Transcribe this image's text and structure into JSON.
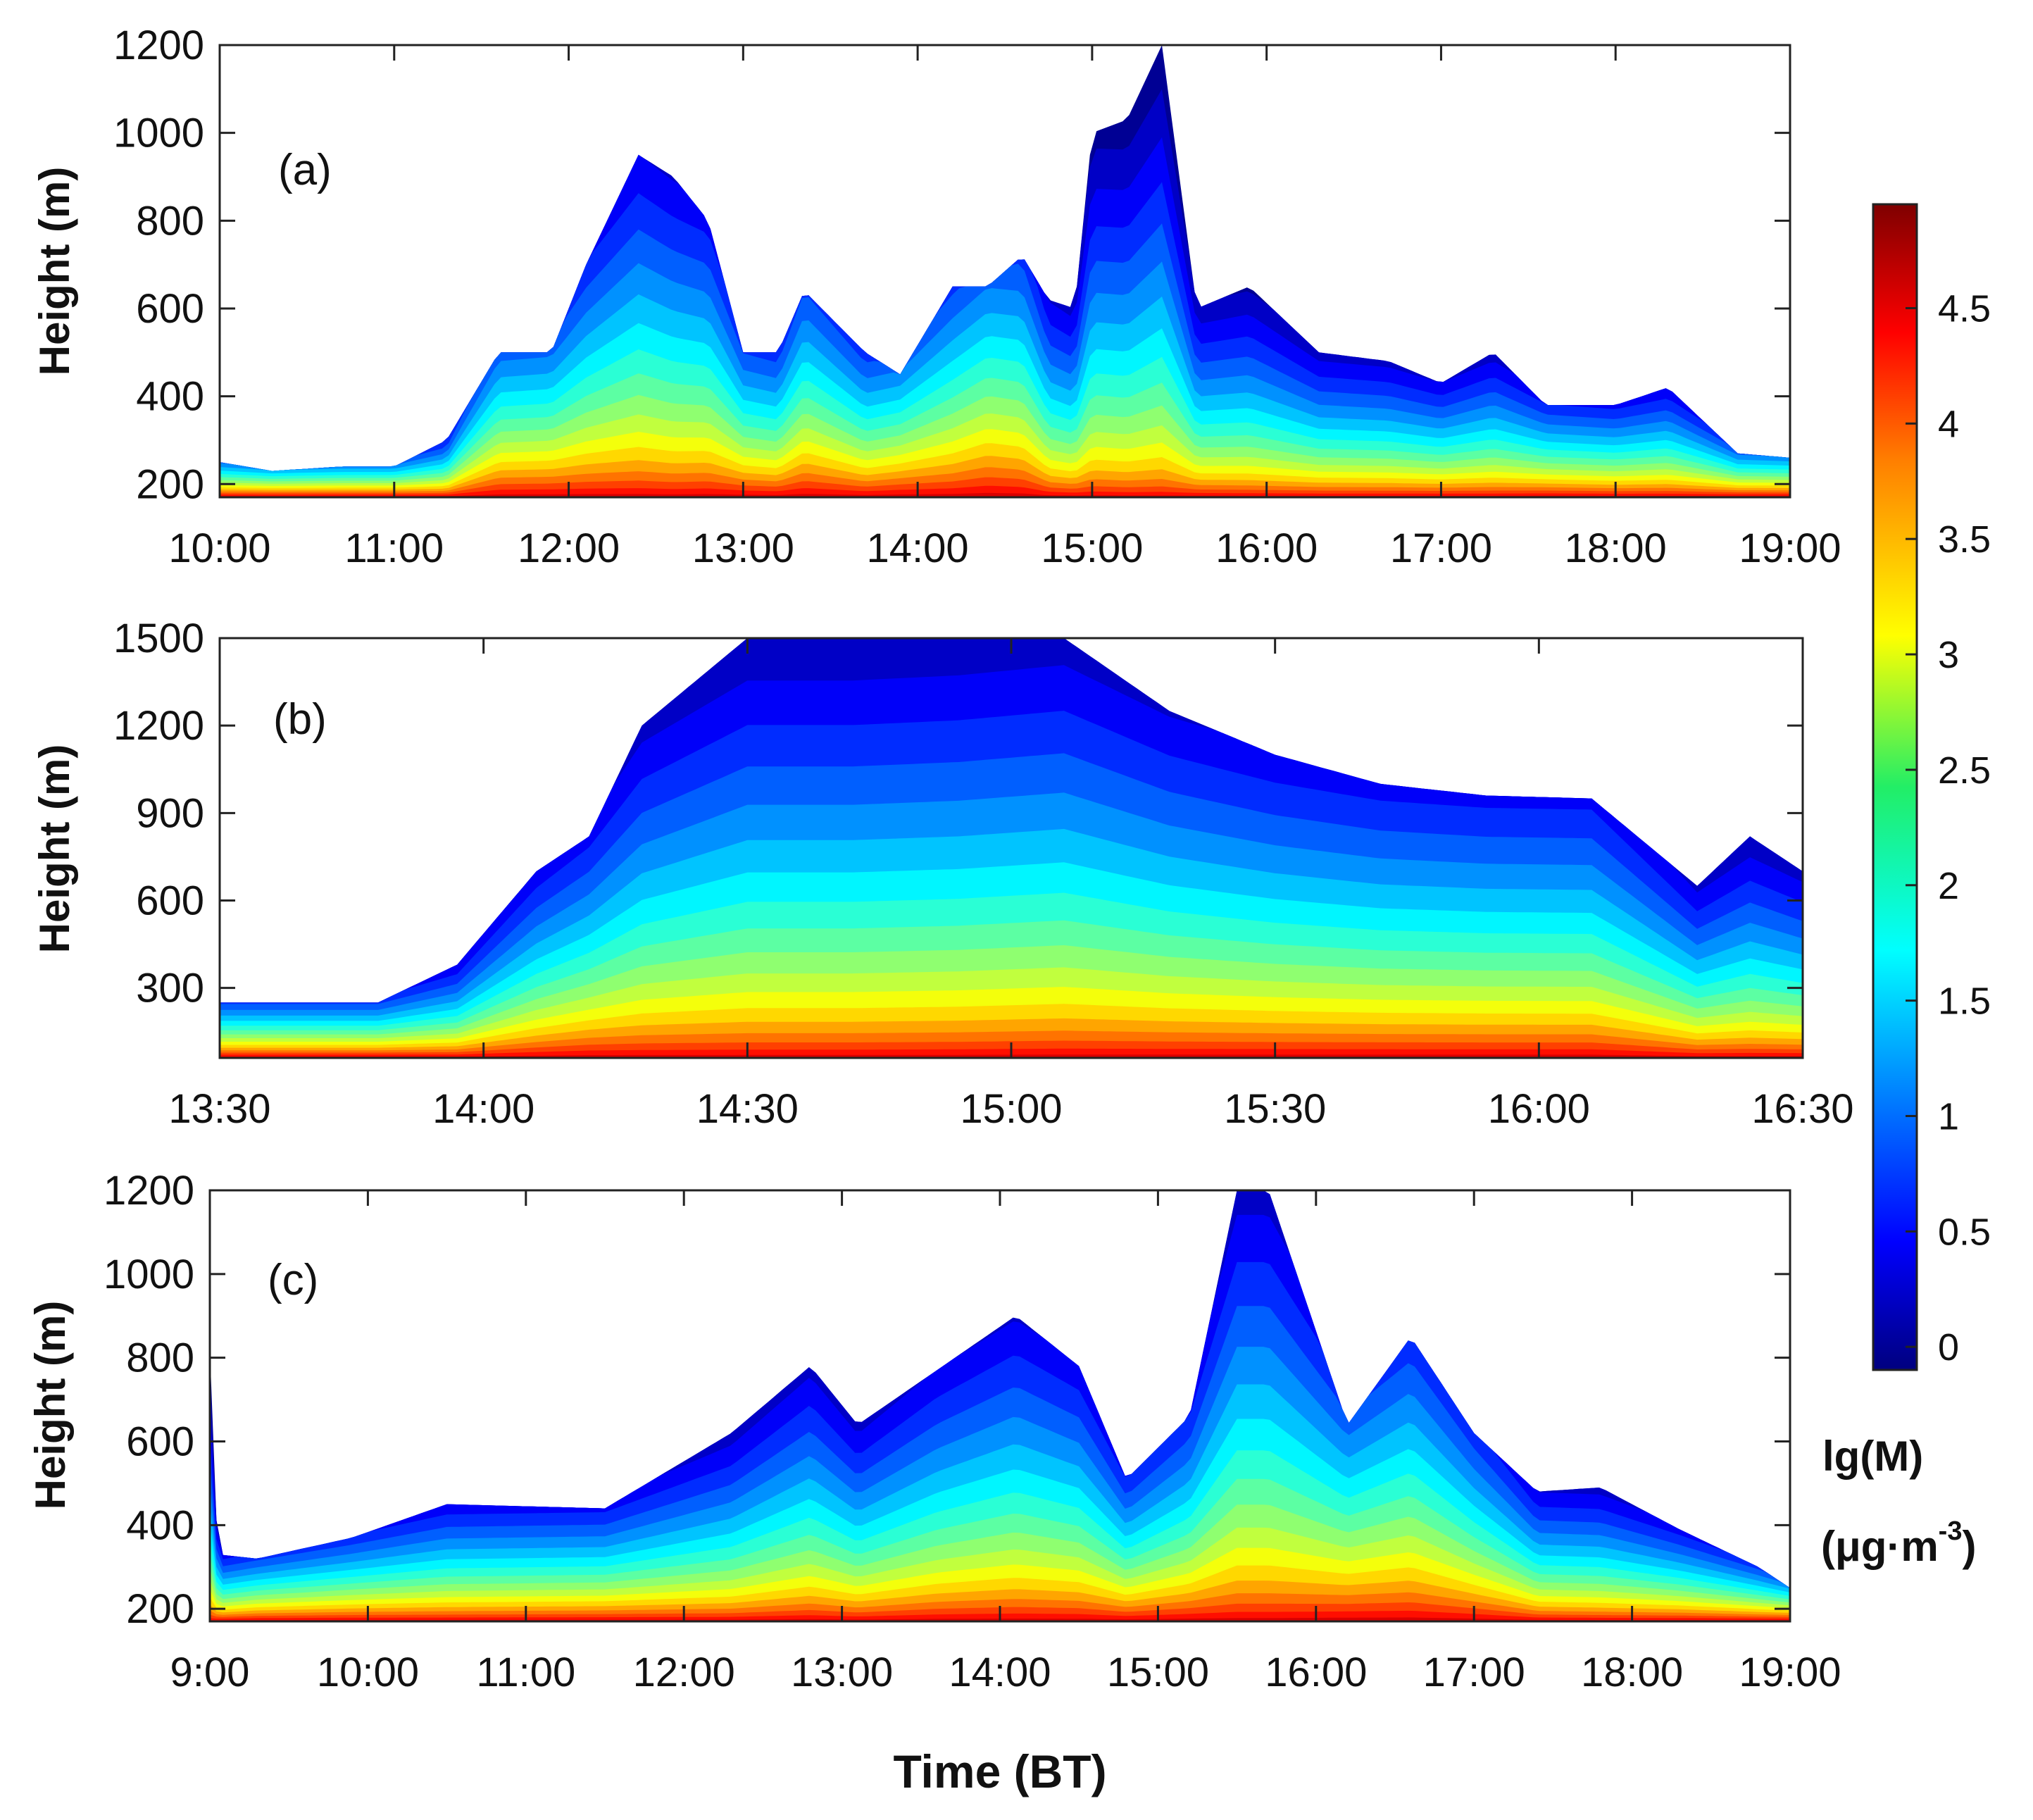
{
  "chart_data": [
    {
      "type": "heatmap",
      "panel_label": "(a)",
      "ylabel": "Height (m)",
      "xlabel": "",
      "xlim": [
        0,
        9
      ],
      "ylim": [
        170,
        1200
      ],
      "x_ticks": [
        "10:00",
        "11:00",
        "12:00",
        "13:00",
        "14:00",
        "15:00",
        "16:00",
        "17:00",
        "18:00",
        "19:00"
      ],
      "y_ticks": [
        "200",
        "400",
        "600",
        "800",
        "1000",
        "1200"
      ],
      "y_tick_values": [
        200,
        400,
        600,
        800,
        1000,
        1200
      ],
      "profile": {
        "x": [
          0,
          0.3,
          0.7,
          1.0,
          1.3,
          1.6,
          1.9,
          2.1,
          2.4,
          2.6,
          2.8,
          3.0,
          3.2,
          3.35,
          3.7,
          3.9,
          4.2,
          4.4,
          4.6,
          4.75,
          4.9,
          5.0,
          5.2,
          5.4,
          5.6,
          5.9,
          6.3,
          6.7,
          7.0,
          7.3,
          7.6,
          8.0,
          8.3,
          8.7,
          9.0
        ],
        "top": [
          250,
          230,
          240,
          240,
          300,
          500,
          500,
          700,
          950,
          900,
          800,
          500,
          500,
          640,
          500,
          450,
          650,
          650,
          720,
          620,
          600,
          1000,
          1030,
          1200,
          600,
          650,
          500,
          480,
          430,
          500,
          380,
          380,
          420,
          270,
          260
        ],
        "surface_peak": [
          0,
          0,
          0,
          0,
          0,
          1.2,
          1.3,
          1.4,
          1.4,
          1.2,
          1.4,
          1.0,
          0.8,
          1.6,
          0.8,
          1.2,
          1.5,
          2.2,
          1.8,
          0.6,
          0.4,
          0.5,
          0.3,
          0.3,
          0.3,
          0.2,
          0.2,
          0.2,
          0.2,
          0.2,
          0.3,
          0.2,
          0.2,
          0.1,
          0.1
        ]
      }
    },
    {
      "type": "heatmap",
      "panel_label": "(b)",
      "ylabel": "Height (m)",
      "xlabel": "",
      "xlim": [
        0,
        3
      ],
      "ylim": [
        60,
        1500
      ],
      "x_ticks": [
        "13:30",
        "14:00",
        "14:30",
        "15:00",
        "15:30",
        "16:00",
        "16:30"
      ],
      "y_ticks": [
        "300",
        "600",
        "900",
        "1200",
        "1500"
      ],
      "y_tick_values": [
        300,
        600,
        900,
        1200,
        1500
      ],
      "profile": {
        "x": [
          0,
          0.3,
          0.45,
          0.6,
          0.7,
          0.8,
          1.0,
          1.2,
          1.4,
          1.6,
          1.8,
          2.0,
          2.2,
          2.4,
          2.6,
          2.8,
          2.9,
          3.0
        ],
        "top": [
          250,
          250,
          380,
          700,
          820,
          1200,
          1500,
          1500,
          1500,
          1500,
          1250,
          1100,
          1000,
          960,
          950,
          650,
          820,
          700
        ],
        "surface_peak": [
          0,
          0,
          0,
          0.6,
          1.0,
          1.0,
          1.0,
          1.0,
          1.1,
          1.3,
          1.3,
          1.3,
          1.3,
          1.3,
          1.3,
          0.3,
          0.3,
          0.3
        ]
      }
    },
    {
      "type": "heatmap",
      "panel_label": "(c)",
      "ylabel": "Height (m)",
      "xlabel": "Time (BT)",
      "xlim": [
        0,
        10
      ],
      "ylim": [
        170,
        1200
      ],
      "x_ticks": [
        "9:00",
        "10:00",
        "11:00",
        "12:00",
        "13:00",
        "14:00",
        "15:00",
        "16:00",
        "17:00",
        "18:00",
        "19:00"
      ],
      "y_ticks": [
        "200",
        "400",
        "600",
        "800",
        "1000",
        "1200"
      ],
      "y_tick_values": [
        200,
        400,
        600,
        800,
        1000,
        1200
      ],
      "profile": {
        "x": [
          0,
          0.05,
          0.3,
          0.9,
          1.5,
          2.5,
          3.3,
          3.8,
          4.1,
          4.6,
          5.1,
          5.5,
          5.8,
          6.2,
          6.5,
          6.7,
          7.2,
          7.6,
          8.0,
          8.4,
          8.8,
          9.3,
          9.8,
          10.0
        ],
        "top": [
          820,
          330,
          320,
          370,
          450,
          440,
          620,
          780,
          640,
          770,
          900,
          780,
          510,
          660,
          1200,
          1200,
          640,
          850,
          620,
          480,
          490,
          390,
          300,
          250
        ],
        "surface_peak": [
          0,
          0,
          0.2,
          0.3,
          0.3,
          0.4,
          0.4,
          0.8,
          0.5,
          1.0,
          1.2,
          1.1,
          0.7,
          1.2,
          1.5,
          1.5,
          1.9,
          2.0,
          1.2,
          0.3,
          0.2,
          0.2,
          0.1,
          0.1
        ]
      }
    }
  ],
  "colorbar": {
    "ticks": [
      "0",
      "0.5",
      "1",
      "1.5",
      "2",
      "2.5",
      "3",
      "3.5",
      "4",
      "4.5"
    ],
    "tick_values": [
      0,
      0.5,
      1,
      1.5,
      2,
      2.5,
      3,
      3.5,
      4,
      4.5
    ],
    "range": [
      -0.1,
      4.95
    ],
    "colormap": "jet",
    "title_line1": "lg(M)",
    "title_line2_prefix": "(μg·m",
    "title_line2_sup": "-3",
    "title_line2_suffix": ")"
  }
}
